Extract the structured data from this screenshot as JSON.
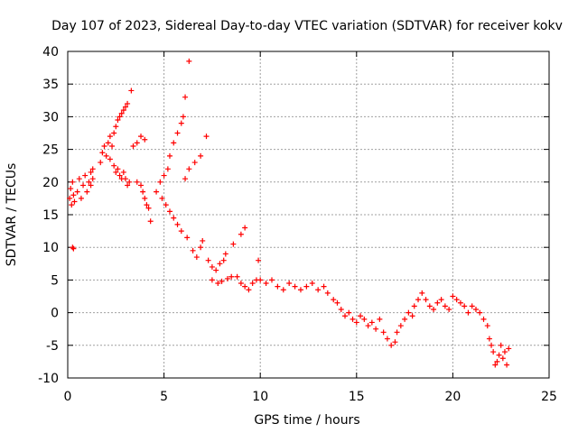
{
  "chart_data": {
    "type": "scatter",
    "title": "Day 107 of 2023, Sidereal Day-to-day VTEC variation (SDTVAR) for receiver kokv",
    "xlabel": "GPS time / hours",
    "ylabel": "SDTVAR / TECUs",
    "xlim": [
      0,
      25
    ],
    "ylim": [
      -10,
      40
    ],
    "xticks": [
      "0",
      "5",
      "10",
      "15",
      "20",
      "25"
    ],
    "yticks": [
      "-10",
      "-5",
      "0",
      "5",
      "10",
      "15",
      "20",
      "25",
      "30",
      "35",
      "40"
    ],
    "grid": true,
    "marker": "+",
    "color": "#ff0000",
    "series": [
      {
        "name": "SDTVAR",
        "points": [
          [
            0.1,
            17.5
          ],
          [
            0.15,
            19.0
          ],
          [
            0.2,
            16.5
          ],
          [
            0.25,
            20.0
          ],
          [
            0.3,
            18.0
          ],
          [
            0.35,
            17.0
          ],
          [
            0.25,
            10.0
          ],
          [
            0.3,
            9.8
          ],
          [
            0.5,
            18.5
          ],
          [
            0.6,
            20.5
          ],
          [
            0.7,
            17.5
          ],
          [
            0.8,
            19.5
          ],
          [
            0.9,
            21.0
          ],
          [
            1.0,
            18.5
          ],
          [
            1.1,
            20.0
          ],
          [
            1.2,
            21.5
          ],
          [
            1.3,
            22.0
          ],
          [
            1.2,
            19.5
          ],
          [
            1.3,
            20.5
          ],
          [
            1.7,
            23.0
          ],
          [
            1.8,
            24.5
          ],
          [
            1.9,
            25.5
          ],
          [
            2.0,
            24.0
          ],
          [
            2.1,
            26.0
          ],
          [
            2.2,
            27.0
          ],
          [
            2.3,
            25.5
          ],
          [
            2.4,
            27.5
          ],
          [
            2.5,
            28.5
          ],
          [
            2.6,
            29.5
          ],
          [
            2.7,
            30.0
          ],
          [
            2.8,
            30.5
          ],
          [
            2.9,
            31.0
          ],
          [
            3.0,
            31.5
          ],
          [
            3.1,
            32.0
          ],
          [
            2.2,
            23.5
          ],
          [
            2.4,
            22.5
          ],
          [
            2.5,
            21.5
          ],
          [
            2.6,
            22.0
          ],
          [
            2.7,
            21.0
          ],
          [
            2.8,
            20.5
          ],
          [
            2.9,
            21.5
          ],
          [
            3.0,
            20.5
          ],
          [
            3.1,
            19.5
          ],
          [
            3.2,
            20.0
          ],
          [
            3.4,
            25.5
          ],
          [
            3.6,
            26.0
          ],
          [
            3.8,
            27.0
          ],
          [
            4.0,
            26.5
          ],
          [
            3.3,
            34.0
          ],
          [
            3.6,
            20.0
          ],
          [
            3.8,
            19.5
          ],
          [
            3.9,
            18.5
          ],
          [
            4.0,
            17.5
          ],
          [
            4.1,
            16.5
          ],
          [
            4.2,
            16.0
          ],
          [
            4.3,
            14.0
          ],
          [
            4.6,
            18.5
          ],
          [
            4.8,
            20.0
          ],
          [
            5.0,
            21.0
          ],
          [
            5.2,
            22.0
          ],
          [
            5.3,
            24.0
          ],
          [
            5.5,
            26.0
          ],
          [
            5.7,
            27.5
          ],
          [
            5.9,
            29.0
          ],
          [
            6.0,
            30.0
          ],
          [
            6.1,
            33.0
          ],
          [
            6.3,
            38.5
          ],
          [
            4.9,
            17.5
          ],
          [
            5.1,
            16.5
          ],
          [
            5.3,
            15.5
          ],
          [
            5.5,
            14.5
          ],
          [
            5.7,
            13.5
          ],
          [
            5.9,
            12.5
          ],
          [
            6.1,
            20.5
          ],
          [
            6.3,
            22.0
          ],
          [
            6.6,
            23.0
          ],
          [
            6.9,
            24.0
          ],
          [
            7.2,
            27.0
          ],
          [
            6.2,
            11.5
          ],
          [
            6.5,
            9.5
          ],
          [
            6.7,
            8.5
          ],
          [
            6.9,
            10.0
          ],
          [
            7.0,
            11.0
          ],
          [
            7.3,
            8.0
          ],
          [
            7.5,
            7.0
          ],
          [
            7.7,
            6.5
          ],
          [
            7.9,
            7.5
          ],
          [
            8.1,
            8.0
          ],
          [
            7.5,
            5.0
          ],
          [
            7.8,
            4.5
          ],
          [
            8.0,
            4.8
          ],
          [
            8.3,
            5.2
          ],
          [
            8.5,
            5.5
          ],
          [
            8.2,
            9.0
          ],
          [
            8.6,
            10.5
          ],
          [
            9.0,
            12.0
          ],
          [
            9.2,
            13.0
          ],
          [
            8.8,
            5.5
          ],
          [
            9.0,
            4.5
          ],
          [
            9.2,
            4.0
          ],
          [
            9.4,
            3.5
          ],
          [
            9.6,
            4.5
          ],
          [
            9.8,
            5.0
          ],
          [
            9.9,
            8.0
          ],
          [
            10.0,
            5.0
          ],
          [
            10.3,
            4.5
          ],
          [
            10.6,
            5.0
          ],
          [
            10.9,
            4.0
          ],
          [
            11.2,
            3.5
          ],
          [
            11.5,
            4.5
          ],
          [
            11.8,
            4.0
          ],
          [
            12.1,
            3.5
          ],
          [
            12.4,
            4.0
          ],
          [
            12.7,
            4.5
          ],
          [
            13.0,
            3.5
          ],
          [
            13.3,
            4.0
          ],
          [
            13.5,
            3.0
          ],
          [
            13.8,
            2.0
          ],
          [
            14.0,
            1.5
          ],
          [
            14.2,
            0.5
          ],
          [
            14.4,
            -0.5
          ],
          [
            14.6,
            0.0
          ],
          [
            14.8,
            -1.0
          ],
          [
            15.0,
            -1.5
          ],
          [
            15.2,
            -0.5
          ],
          [
            15.4,
            -1.0
          ],
          [
            15.6,
            -2.0
          ],
          [
            15.8,
            -1.5
          ],
          [
            16.0,
            -2.5
          ],
          [
            16.2,
            -1.0
          ],
          [
            16.4,
            -3.0
          ],
          [
            16.6,
            -4.0
          ],
          [
            16.8,
            -5.0
          ],
          [
            17.0,
            -4.5
          ],
          [
            17.1,
            -3.0
          ],
          [
            17.3,
            -2.0
          ],
          [
            17.5,
            -1.0
          ],
          [
            17.7,
            0.0
          ],
          [
            17.9,
            -0.5
          ],
          [
            18.0,
            1.0
          ],
          [
            18.2,
            2.0
          ],
          [
            18.4,
            3.0
          ],
          [
            18.6,
            2.0
          ],
          [
            18.8,
            1.0
          ],
          [
            19.0,
            0.5
          ],
          [
            19.2,
            1.5
          ],
          [
            19.4,
            2.0
          ],
          [
            19.6,
            1.0
          ],
          [
            19.8,
            0.5
          ],
          [
            20.0,
            2.5
          ],
          [
            20.2,
            2.0
          ],
          [
            20.4,
            1.5
          ],
          [
            20.6,
            1.0
          ],
          [
            20.8,
            0.0
          ],
          [
            21.0,
            1.0
          ],
          [
            21.2,
            0.5
          ],
          [
            21.4,
            0.0
          ],
          [
            21.6,
            -1.0
          ],
          [
            21.8,
            -2.0
          ],
          [
            21.9,
            -4.0
          ],
          [
            22.0,
            -5.0
          ],
          [
            22.1,
            -6.0
          ],
          [
            22.2,
            -8.0
          ],
          [
            22.3,
            -7.5
          ],
          [
            22.4,
            -6.5
          ],
          [
            22.5,
            -5.0
          ],
          [
            22.6,
            -7.0
          ],
          [
            22.7,
            -6.0
          ],
          [
            22.8,
            -8.0
          ],
          [
            22.9,
            -5.5
          ]
        ]
      }
    ]
  }
}
